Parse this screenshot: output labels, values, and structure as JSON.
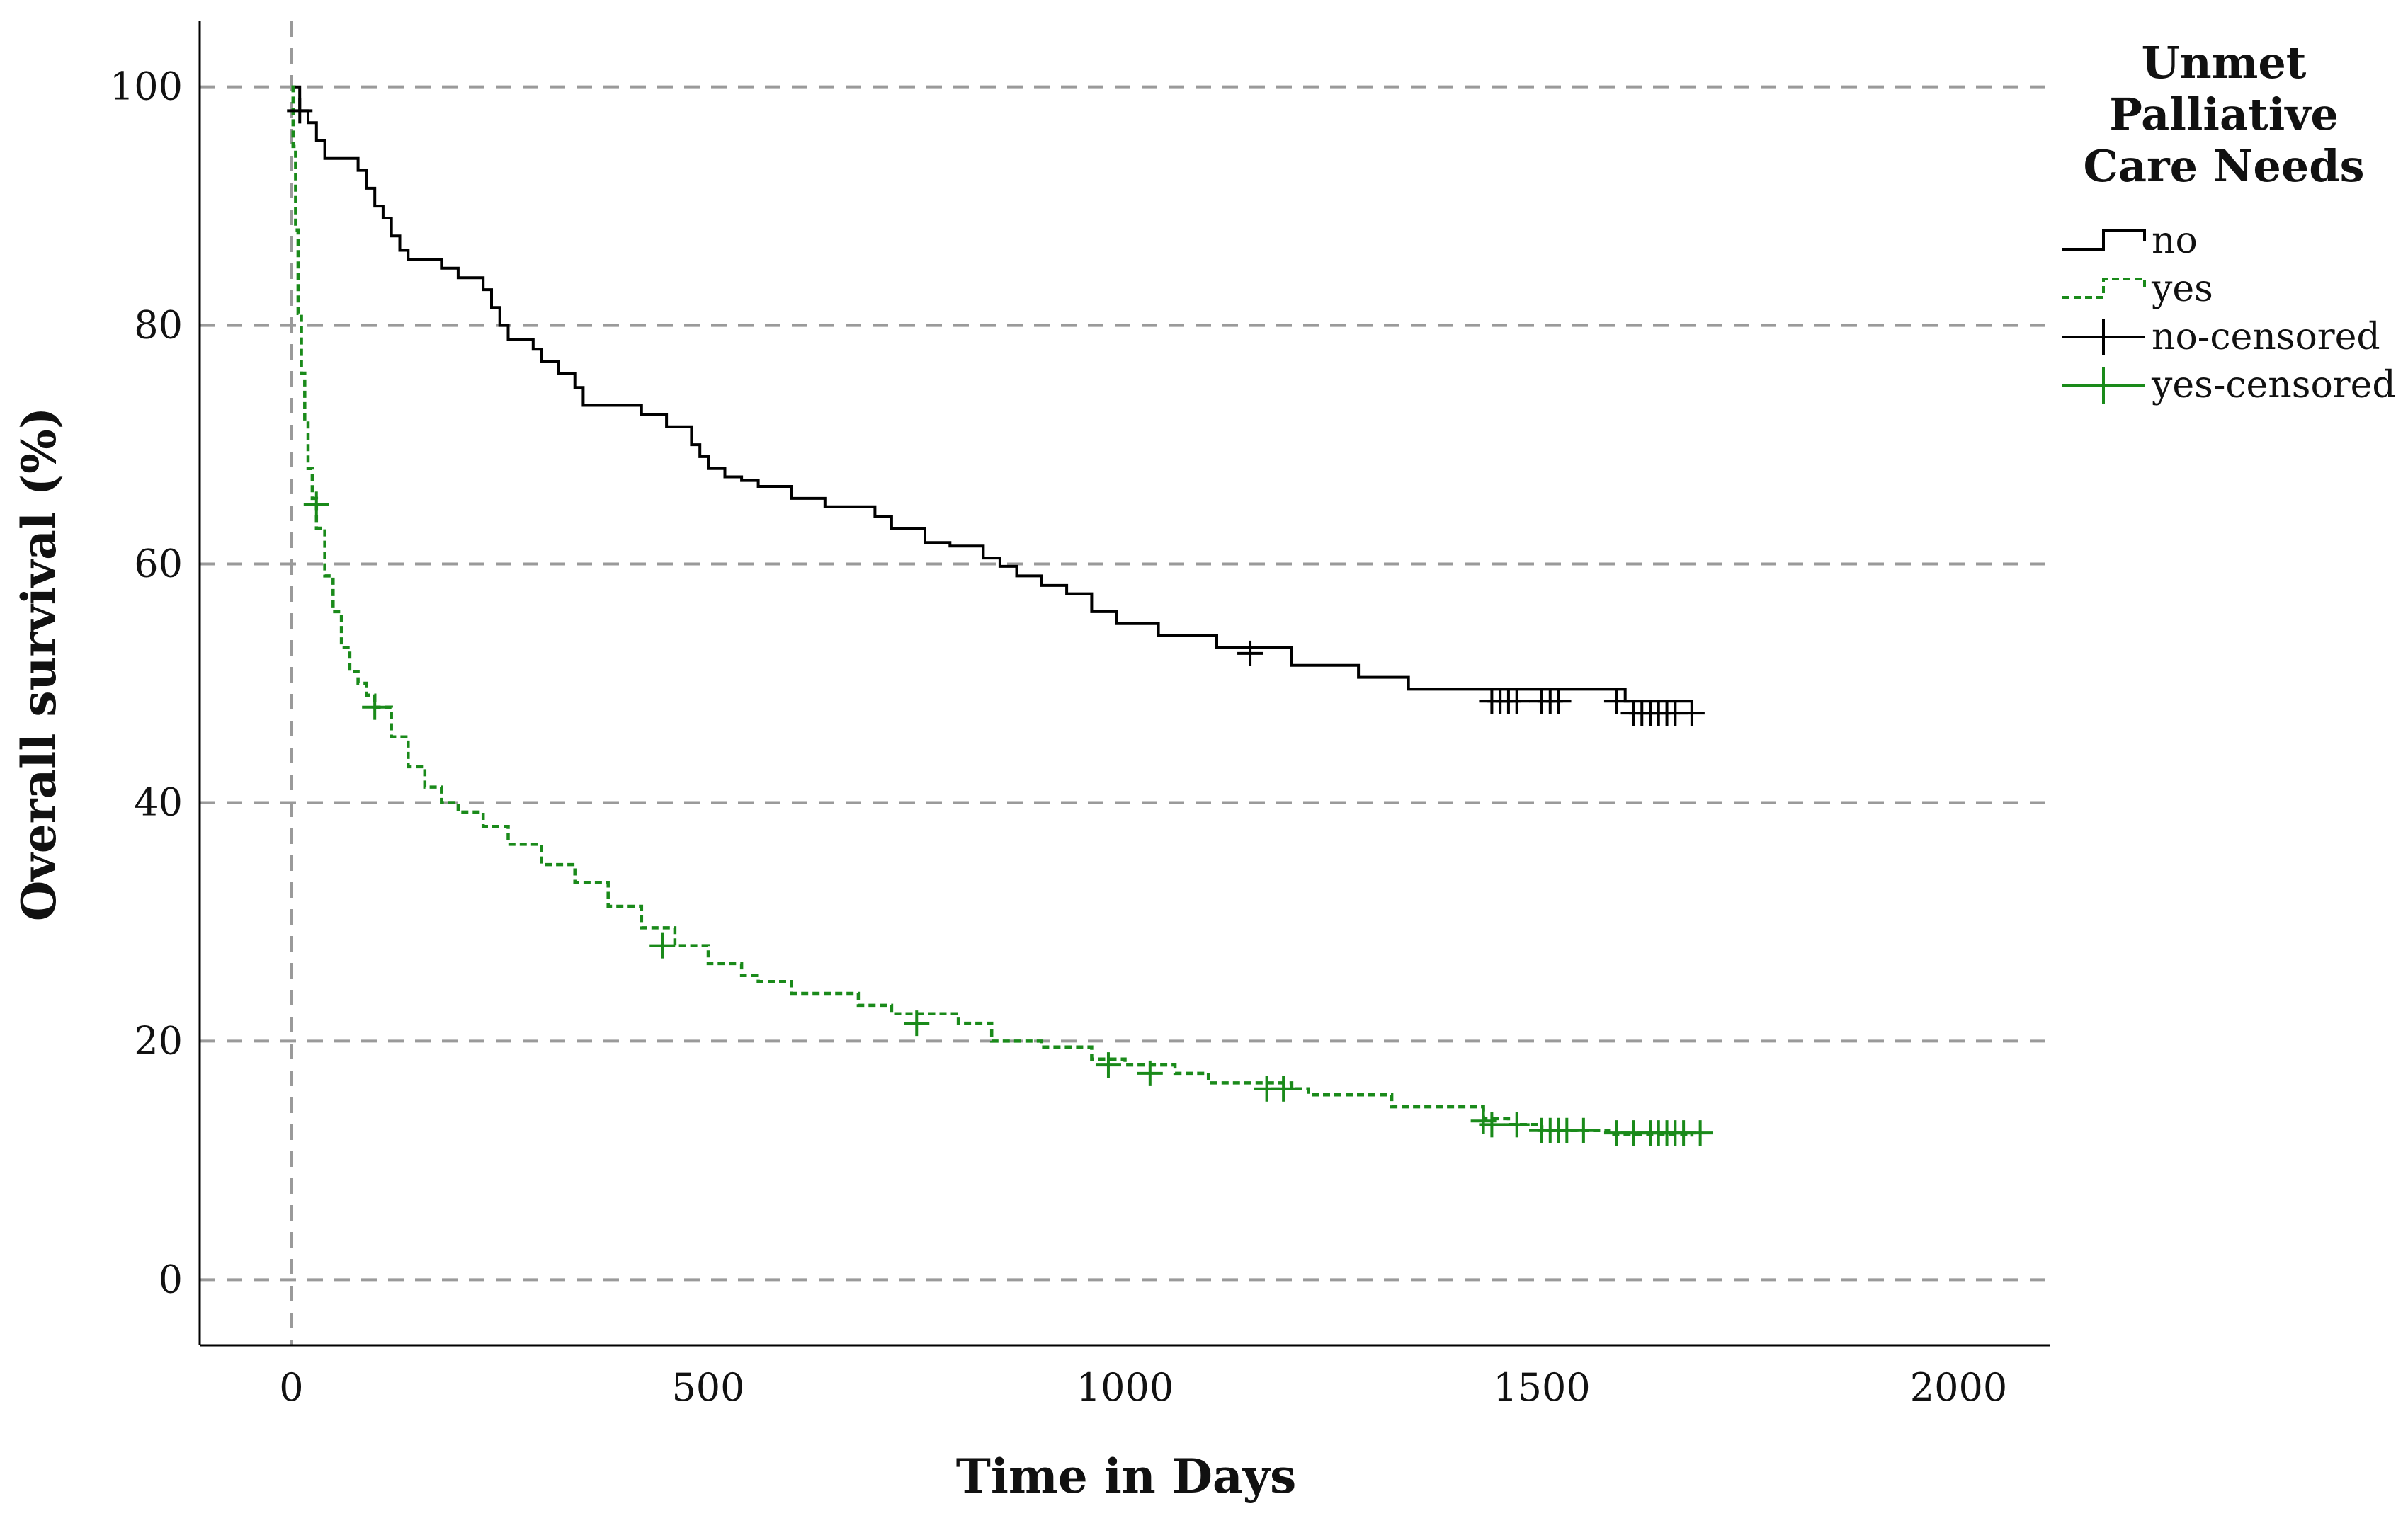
{
  "chart_data": {
    "type": "line",
    "subtype": "kaplan-meier-step",
    "title": "",
    "xlabel": "Time in Days",
    "ylabel": "Overall survival (%)",
    "xlim": [
      -110,
      2110
    ],
    "ylim": [
      -5.5,
      105.5
    ],
    "xticks": [
      0,
      500,
      1000,
      1500,
      2000
    ],
    "yticks": [
      0,
      20,
      40,
      60,
      80,
      100
    ],
    "grid": {
      "horizontal": true,
      "vertical_at_zero": true,
      "style": "dashed"
    },
    "legend": {
      "title_lines": [
        "Unmet",
        "Palliative",
        "Care Needs"
      ],
      "placement": "top-right-outside",
      "entries": [
        {
          "label": "no",
          "kind": "step-line",
          "color": "#000000"
        },
        {
          "label": "yes",
          "kind": "step-line-dashed",
          "color": "#1a8a1a"
        },
        {
          "label": "no-censored",
          "kind": "cross",
          "color": "#000000"
        },
        {
          "label": "yes-censored",
          "kind": "cross",
          "color": "#1a8a1a"
        }
      ]
    },
    "series": [
      {
        "name": "no",
        "color": "#000000",
        "dashed": false,
        "x": [
          0,
          10,
          20,
          30,
          40,
          80,
          90,
          100,
          110,
          120,
          130,
          140,
          150,
          180,
          200,
          230,
          240,
          250,
          260,
          290,
          300,
          320,
          340,
          350,
          420,
          450,
          480,
          490,
          500,
          520,
          540,
          560,
          600,
          640,
          700,
          720,
          760,
          790,
          830,
          850,
          870,
          900,
          930,
          960,
          990,
          1040,
          1110,
          1200,
          1280,
          1340,
          1600,
          1680
        ],
        "y": [
          100,
          98,
          97,
          95.5,
          94,
          93,
          91.5,
          90,
          89,
          87.5,
          86.3,
          85.5,
          85.5,
          84.8,
          84,
          83,
          81.5,
          80,
          78.8,
          78,
          77,
          76,
          74.8,
          73.3,
          72.5,
          71.5,
          70,
          69,
          68,
          67.3,
          67,
          66.5,
          65.5,
          64.8,
          64,
          63,
          61.8,
          61.5,
          60.5,
          59.8,
          59,
          58.2,
          57.5,
          56,
          55,
          54,
          53,
          51.5,
          50.5,
          49.5,
          48.5,
          47.5
        ]
      },
      {
        "name": "yes",
        "color": "#1a8a1a",
        "dashed": true,
        "x": [
          0,
          2,
          5,
          8,
          12,
          16,
          20,
          25,
          30,
          40,
          50,
          60,
          70,
          80,
          90,
          100,
          120,
          140,
          160,
          180,
          200,
          230,
          260,
          300,
          340,
          380,
          420,
          460,
          500,
          540,
          560,
          600,
          680,
          720,
          800,
          840,
          900,
          960,
          1000,
          1060,
          1100,
          1200,
          1220,
          1320,
          1430,
          1460,
          1500,
          1580,
          1680
        ],
        "y": [
          100,
          95,
          88,
          81,
          76,
          72,
          68,
          65.5,
          63,
          59,
          56,
          53,
          51,
          50,
          49,
          48,
          45.5,
          43,
          41.3,
          40,
          39.2,
          38,
          36.5,
          34.8,
          33.3,
          31.3,
          29.5,
          28,
          26.5,
          25.5,
          25,
          24,
          23,
          22.3,
          21.5,
          20,
          19.5,
          18.5,
          18,
          17.3,
          16.5,
          16,
          15.5,
          14.5,
          13.5,
          13,
          12.5,
          12.2,
          12
        ]
      }
    ],
    "censored": [
      {
        "series": "no",
        "color": "#000000",
        "points": [
          [
            10,
            98
          ],
          [
            1150,
            52.5
          ],
          [
            1440,
            48.5
          ],
          [
            1450,
            48.5
          ],
          [
            1460,
            48.5
          ],
          [
            1470,
            48.5
          ],
          [
            1500,
            48.5
          ],
          [
            1510,
            48.5
          ],
          [
            1520,
            48.5
          ],
          [
            1590,
            48.5
          ],
          [
            1610,
            47.5
          ],
          [
            1620,
            47.5
          ],
          [
            1630,
            47.5
          ],
          [
            1640,
            47.5
          ],
          [
            1650,
            47.5
          ],
          [
            1660,
            47.5
          ],
          [
            1680,
            47.5
          ]
        ]
      },
      {
        "series": "yes",
        "color": "#1a8a1a",
        "points": [
          [
            30,
            65
          ],
          [
            100,
            48
          ],
          [
            445,
            28
          ],
          [
            750,
            21.5
          ],
          [
            980,
            18
          ],
          [
            1030,
            17.3
          ],
          [
            1170,
            16
          ],
          [
            1190,
            16
          ],
          [
            1430,
            13.3
          ],
          [
            1440,
            13
          ],
          [
            1470,
            13
          ],
          [
            1500,
            12.5
          ],
          [
            1510,
            12.5
          ],
          [
            1520,
            12.5
          ],
          [
            1530,
            12.5
          ],
          [
            1550,
            12.5
          ],
          [
            1590,
            12.3
          ],
          [
            1610,
            12.3
          ],
          [
            1630,
            12.3
          ],
          [
            1640,
            12.3
          ],
          [
            1650,
            12.3
          ],
          [
            1660,
            12.3
          ],
          [
            1670,
            12.3
          ],
          [
            1690,
            12.3
          ]
        ]
      }
    ]
  }
}
